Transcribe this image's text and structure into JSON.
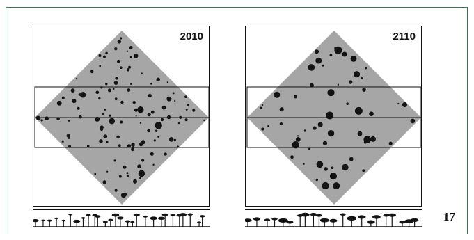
{
  "page": {
    "number": "17",
    "frame_color": "#2e7a4f"
  },
  "panels": [
    {
      "year": "2010",
      "seed": 11,
      "trees": 120,
      "big_ratio": 0.12
    },
    {
      "year": "2110",
      "seed": 97,
      "trees": 60,
      "big_ratio": 0.55
    }
  ],
  "colors": {
    "plot_fill": "#a6a6a6",
    "tree": "#141414",
    "line": "#111111"
  }
}
